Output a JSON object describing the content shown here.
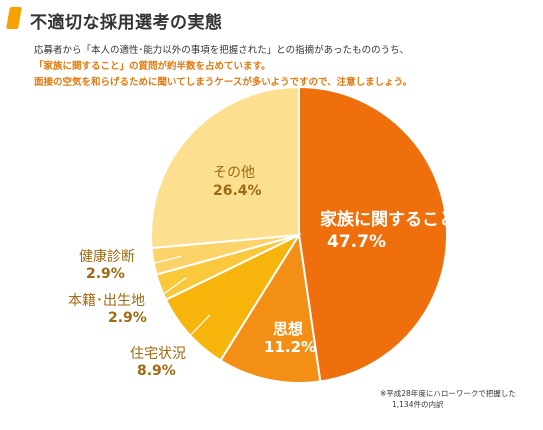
{
  "header": {
    "title": "不適切な採用選考の実態",
    "intro_line1": "応募者から「本人の適性･能力以外の事項を把握された」との指摘があったもののうち、",
    "intro_line2": "「家族に関すること」の質問が約半数を占めています。",
    "intro_line3": "面接の空気を和らげるために聞いてしまうケースが多いようですので、注意しましょう。"
  },
  "footnote": {
    "line1": "※平成28年度にハローワークで把握した",
    "line2": "1,134件の内訳"
  },
  "chart_data": {
    "type": "pie",
    "slices": [
      {
        "label": "家族に関すること",
        "value": 47.7,
        "display": "47.7%",
        "color": "#ee6f0c"
      },
      {
        "label": "思想",
        "value": 11.2,
        "display": "11.2%",
        "color": "#f28f14"
      },
      {
        "label": "住宅状況",
        "value": 8.9,
        "display": "8.9%",
        "color": "#f7b40b"
      },
      {
        "label": "本籍･出生地",
        "value": 2.9,
        "display": "2.9%",
        "color": "#f9c83b"
      },
      {
        "label": "健康診断",
        "value": 2.9,
        "display": "2.9%",
        "color": "#fbd368"
      },
      {
        "label": "その他",
        "value": 26.4,
        "display": "26.4%",
        "color": "#fde08f"
      }
    ]
  }
}
